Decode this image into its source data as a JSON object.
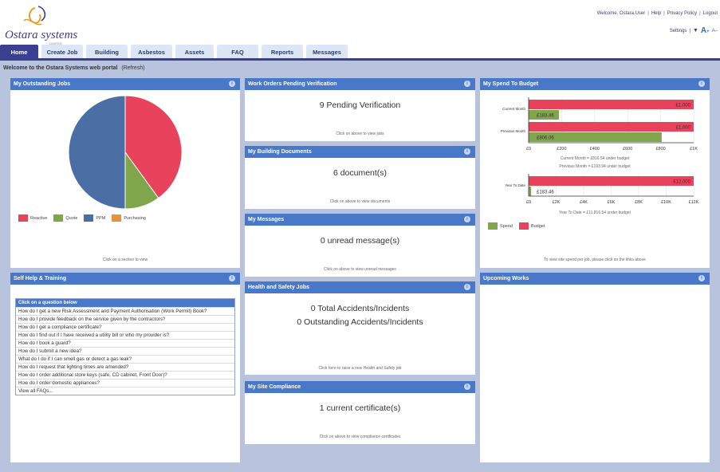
{
  "header": {
    "logo_text": "Ostara systems",
    "logo_sub": "LIMITED",
    "welcome_user": "Welcome, Ostara.User",
    "help": "Help",
    "privacy": "Privacy Policy",
    "logout": "Logout",
    "settings": "Settings"
  },
  "tabs": [
    {
      "label": "Home",
      "active": true
    },
    {
      "label": "Create Job"
    },
    {
      "label": "Building"
    },
    {
      "label": "Asbestos"
    },
    {
      "label": "Assets"
    },
    {
      "label": "FAQ"
    },
    {
      "label": "Reports"
    },
    {
      "label": "Messages"
    }
  ],
  "welcome": {
    "text": "Welcome to the Ostara Systems web portal",
    "refresh": "(Refresh)"
  },
  "outstanding": {
    "title": "My Outstanding Jobs",
    "footer": "Click on a section to view",
    "chart_data": {
      "type": "pie",
      "categories": [
        "Reactive",
        "Quote",
        "PPM",
        "Purchasing"
      ],
      "values": [
        40,
        10,
        50,
        0
      ],
      "colors": [
        "#e8425c",
        "#7fa64a",
        "#4a6fa5",
        "#e8923c"
      ]
    }
  },
  "work_orders": {
    "title": "Work Orders Pending Verification",
    "value": "9 Pending Verification",
    "footer": "Click on above to view jobs"
  },
  "documents": {
    "title": "My Building Documents",
    "value": "6 document(s)",
    "footer": "Click on above to view documents"
  },
  "messages": {
    "title": "My Messages",
    "value": "0 unread message(s)",
    "footer": "Click on above to view unread messages"
  },
  "health": {
    "title": "Health and Safety Jobs",
    "line1": "0 Total Accidents/Incidents",
    "line2": "0 Outstanding Accidents/Incidents",
    "footer": "Click here to raise a new Health and Safety job"
  },
  "compliance": {
    "title": "My Site Compliance",
    "value": "1 current certificate(s)",
    "footer": "Click on above to view compliance certificates"
  },
  "spend": {
    "title": "My Spend To Budget",
    "summary1": "Current Month = £816.54 under budget",
    "summary2": "Previous Month = £193.94 under budget",
    "summary3": "Year To Date = £11,816.54 under budget",
    "legend_spend": "Spend",
    "legend_budget": "Budget",
    "footer": "To view site spend per job, please click on the links above",
    "colors": {
      "spend": "#7fa64a",
      "budget": "#e8425c"
    },
    "chart_data": [
      {
        "type": "bar",
        "orientation": "horizontal",
        "categories": [
          "Current Month",
          "Previous Month"
        ],
        "series": [
          {
            "name": "Budget",
            "values": [
              1000,
              1000
            ],
            "labels": [
              "£1,000",
              "£1,000"
            ]
          },
          {
            "name": "Spend",
            "values": [
              183.46,
              806.06
            ],
            "labels": [
              "£183.46",
              "£806.06"
            ]
          }
        ],
        "xlim": [
          0,
          1000
        ],
        "ticks": [
          "£0",
          "£200",
          "£400",
          "£600",
          "£800",
          "£1K"
        ]
      },
      {
        "type": "bar",
        "orientation": "horizontal",
        "categories": [
          "Year To Date"
        ],
        "series": [
          {
            "name": "Budget",
            "values": [
              12000
            ],
            "labels": [
              "£12,000"
            ]
          },
          {
            "name": "Spend",
            "values": [
              183.46
            ],
            "labels": [
              "£183.46"
            ]
          }
        ],
        "xlim": [
          0,
          12000
        ],
        "ticks": [
          "£0",
          "£2K",
          "£4K",
          "£6K",
          "£8K",
          "£10K",
          "£12K"
        ]
      }
    ]
  },
  "selfhelp": {
    "title": "Self Help & Training",
    "box_head": "Click on a question below",
    "items": [
      "How do I get a new Risk Assessment and Payment Authorisation (Work Permit) Book?",
      "How do I provide feedback on the service given by the contractors?",
      "How do I get a compliance certificate?",
      "How do I find out if I have received a utility bill or who my provider is?",
      "How do I book a guard?",
      "How do I submit a new idea?",
      "What do I do if I can smell gas or detect a gas leak?",
      "How do I request that lighting times are amended?",
      "How do I order additional store keys (safe, CD cabinet, Front Door)?",
      "How do I order domestic appliances?",
      "View all FAQs..."
    ]
  },
  "upcoming": {
    "title": "Upcoming Works"
  },
  "info_glyph": "i"
}
